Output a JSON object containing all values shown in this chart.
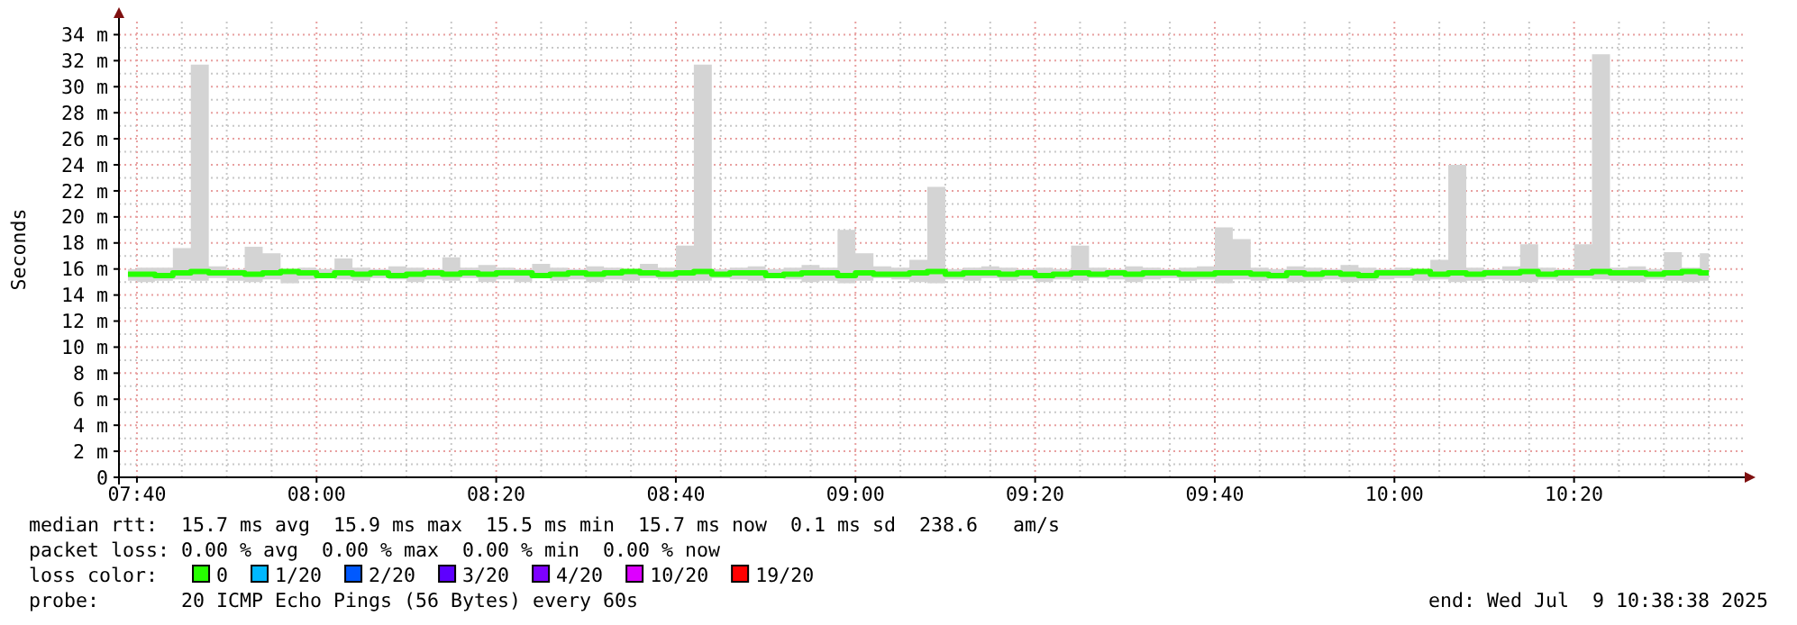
{
  "chart_data": {
    "type": "line",
    "ylabel": "Seconds",
    "legend_title": "loss color:",
    "legend": "bottom",
    "grid": true,
    "line_style": "solid",
    "marker": "none",
    "xlim": [
      "2025-07-09T07:38",
      "2025-07-09T10:39"
    ],
    "xticks": [
      {
        "value": "2025-07-09T07:40",
        "label": "07:40"
      },
      {
        "value": "2025-07-09T08:00",
        "label": "08:00"
      },
      {
        "value": "2025-07-09T08:20",
        "label": "08:20"
      },
      {
        "value": "2025-07-09T08:40",
        "label": "08:40"
      },
      {
        "value": "2025-07-09T09:00",
        "label": "09:00"
      },
      {
        "value": "2025-07-09T09:20",
        "label": "09:20"
      },
      {
        "value": "2025-07-09T09:40",
        "label": "09:40"
      },
      {
        "value": "2025-07-09T10:00",
        "label": "10:00"
      },
      {
        "value": "2025-07-09T10:20",
        "label": "10:20"
      }
    ],
    "ylim": [
      0,
      35
    ],
    "yticks": [
      0,
      {
        "value": 2,
        "label": "2 m"
      },
      {
        "value": 4,
        "label": "4 m"
      },
      {
        "value": 6,
        "label": "6 m"
      },
      {
        "value": 8,
        "label": "8 m"
      },
      {
        "value": 10,
        "label": "10 m"
      },
      {
        "value": 12,
        "label": "12 m"
      },
      {
        "value": 14,
        "label": "14 m"
      },
      {
        "value": 16,
        "label": "16 m"
      },
      {
        "value": 18,
        "label": "18 m"
      },
      {
        "value": 20,
        "label": "20 m"
      },
      {
        "value": 22,
        "label": "22 m"
      },
      {
        "value": 24,
        "label": "24 m"
      },
      {
        "value": 26,
        "label": "26 m"
      },
      {
        "value": 28,
        "label": "28 m"
      },
      {
        "value": 30,
        "label": "30 m"
      },
      {
        "value": 32,
        "label": "32 m"
      },
      {
        "value": 34,
        "label": "34 m"
      }
    ],
    "x": [
      "2025-07-09T07:39",
      "2025-07-09T07:41",
      "2025-07-09T07:43",
      "2025-07-09T07:45",
      "2025-07-09T07:47",
      "2025-07-09T07:49",
      "2025-07-09T07:51",
      "2025-07-09T07:53",
      "2025-07-09T07:55",
      "2025-07-09T07:57",
      "2025-07-09T07:59",
      "2025-07-09T08:01",
      "2025-07-09T08:03",
      "2025-07-09T08:05",
      "2025-07-09T08:07",
      "2025-07-09T08:09",
      "2025-07-09T08:11",
      "2025-07-09T08:13",
      "2025-07-09T08:15",
      "2025-07-09T08:17",
      "2025-07-09T08:19",
      "2025-07-09T08:21",
      "2025-07-09T08:23",
      "2025-07-09T08:25",
      "2025-07-09T08:27",
      "2025-07-09T08:29",
      "2025-07-09T08:31",
      "2025-07-09T08:33",
      "2025-07-09T08:35",
      "2025-07-09T08:37",
      "2025-07-09T08:39",
      "2025-07-09T08:41",
      "2025-07-09T08:43",
      "2025-07-09T08:45",
      "2025-07-09T08:47",
      "2025-07-09T08:49",
      "2025-07-09T08:51",
      "2025-07-09T08:53",
      "2025-07-09T08:55",
      "2025-07-09T08:57",
      "2025-07-09T08:59",
      "2025-07-09T09:01",
      "2025-07-09T09:03",
      "2025-07-09T09:05",
      "2025-07-09T09:07",
      "2025-07-09T09:09",
      "2025-07-09T09:11",
      "2025-07-09T09:13",
      "2025-07-09T09:15",
      "2025-07-09T09:17",
      "2025-07-09T09:19",
      "2025-07-09T09:21",
      "2025-07-09T09:23",
      "2025-07-09T09:25",
      "2025-07-09T09:27",
      "2025-07-09T09:29",
      "2025-07-09T09:31",
      "2025-07-09T09:33",
      "2025-07-09T09:35",
      "2025-07-09T09:37",
      "2025-07-09T09:39",
      "2025-07-09T09:41",
      "2025-07-09T09:43",
      "2025-07-09T09:45",
      "2025-07-09T09:47",
      "2025-07-09T09:49",
      "2025-07-09T09:51",
      "2025-07-09T09:53",
      "2025-07-09T09:55",
      "2025-07-09T09:57",
      "2025-07-09T09:59",
      "2025-07-09T10:01",
      "2025-07-09T10:03",
      "2025-07-09T10:05",
      "2025-07-09T10:07",
      "2025-07-09T10:09",
      "2025-07-09T10:11",
      "2025-07-09T10:13",
      "2025-07-09T10:15",
      "2025-07-09T10:17",
      "2025-07-09T10:19",
      "2025-07-09T10:21",
      "2025-07-09T10:23",
      "2025-07-09T10:25",
      "2025-07-09T10:27",
      "2025-07-09T10:29",
      "2025-07-09T10:31",
      "2025-07-09T10:33",
      "2025-07-09T10:35"
    ],
    "series": [
      {
        "name": "0",
        "color": "#26ff00",
        "values": [
          15.6,
          15.6,
          15.5,
          15.7,
          15.8,
          15.7,
          15.7,
          15.6,
          15.7,
          15.8,
          15.7,
          15.5,
          15.7,
          15.6,
          15.7,
          15.5,
          15.6,
          15.7,
          15.6,
          15.7,
          15.6,
          15.7,
          15.7,
          15.5,
          15.6,
          15.7,
          15.6,
          15.7,
          15.8,
          15.7,
          15.6,
          15.7,
          15.8,
          15.6,
          15.7,
          15.7,
          15.5,
          15.6,
          15.7,
          15.7,
          15.5,
          15.7,
          15.6,
          15.6,
          15.7,
          15.8,
          15.6,
          15.7,
          15.7,
          15.6,
          15.7,
          15.5,
          15.6,
          15.7,
          15.6,
          15.7,
          15.6,
          15.7,
          15.7,
          15.6,
          15.6,
          15.7,
          15.7,
          15.6,
          15.5,
          15.7,
          15.6,
          15.7,
          15.6,
          15.5,
          15.7,
          15.7,
          15.8,
          15.6,
          15.7,
          15.6,
          15.7,
          15.7,
          15.8,
          15.6,
          15.7,
          15.7,
          15.8,
          15.7,
          15.7,
          15.6,
          15.7,
          15.8,
          15.7
        ],
        "lower": [
          15.1,
          15.0,
          15.1,
          15.2,
          15.1,
          15.3,
          15.1,
          15.0,
          15.2,
          14.9,
          15.2,
          15.3,
          15.2,
          15.1,
          15.3,
          15.2,
          15.0,
          15.2,
          15.1,
          15.3,
          15.0,
          15.2,
          15.0,
          15.3,
          15.1,
          15.2,
          15.0,
          15.2,
          15.1,
          15.3,
          15.2,
          15.1,
          15.1,
          15.3,
          15.2,
          15.1,
          15.3,
          15.2,
          15.0,
          15.1,
          14.9,
          15.1,
          15.3,
          15.2,
          15.0,
          14.9,
          15.2,
          15.1,
          15.3,
          15.1,
          15.2,
          15.0,
          15.2,
          15.1,
          15.3,
          15.2,
          15.0,
          15.2,
          15.3,
          15.1,
          15.2,
          14.9,
          15.2,
          15.1,
          15.2,
          15.0,
          15.1,
          15.2,
          15.0,
          15.1,
          15.2,
          15.3,
          15.1,
          15.2,
          15.0,
          15.1,
          15.2,
          15.1,
          15.0,
          15.2,
          15.1,
          15.3,
          15.2,
          15.1,
          15.0,
          15.2,
          15.1,
          15.0,
          15.1
        ],
        "upper": [
          16.0,
          16.1,
          16.1,
          17.6,
          31.7,
          16.2,
          16.0,
          17.7,
          17.2,
          16.0,
          16.1,
          16.0,
          16.8,
          16.1,
          16.0,
          16.2,
          16.1,
          16.0,
          16.9,
          16.1,
          16.3,
          16.1,
          16.0,
          16.4,
          16.1,
          16.0,
          16.2,
          16.1,
          16.0,
          16.4,
          16.1,
          17.8,
          31.7,
          16.0,
          16.1,
          16.2,
          16.0,
          16.1,
          16.3,
          16.1,
          19.0,
          17.2,
          16.2,
          16.1,
          16.7,
          22.3,
          16.0,
          16.1,
          16.2,
          16.1,
          16.0,
          16.1,
          16.0,
          17.8,
          16.1,
          16.0,
          16.2,
          16.1,
          16.0,
          16.1,
          16.2,
          19.2,
          18.3,
          16.1,
          16.0,
          16.2,
          16.1,
          16.0,
          16.3,
          16.1,
          16.0,
          16.1,
          16.0,
          16.7,
          24.0,
          16.1,
          16.0,
          16.2,
          17.9,
          16.1,
          16.0,
          17.9,
          32.5,
          16.1,
          16.2,
          16.0,
          17.3,
          16.1,
          17.2
        ]
      },
      {
        "name": "1/20",
        "color": "#00b8ff",
        "values": [
          null,
          null,
          null,
          null,
          null,
          null,
          null,
          null,
          null,
          null,
          null,
          null,
          null,
          null,
          null,
          null,
          null,
          null,
          null,
          null,
          null,
          null,
          null,
          null,
          null,
          null,
          null,
          null,
          null,
          null,
          null,
          null,
          null,
          null,
          null,
          null,
          null,
          null,
          null,
          null,
          null,
          null,
          null,
          null,
          null,
          null,
          null,
          null,
          null,
          null,
          null,
          null,
          null,
          null,
          null,
          null,
          null,
          null,
          null,
          null,
          null,
          null,
          null,
          null,
          null,
          null,
          null,
          null,
          null,
          null,
          null,
          null,
          null,
          null,
          null,
          null,
          null,
          null,
          null,
          null,
          null,
          null,
          null,
          null,
          null,
          null,
          null,
          null,
          null
        ]
      },
      {
        "name": "2/20",
        "color": "#0059ff",
        "values": [
          null,
          null,
          null,
          null,
          null,
          null,
          null,
          null,
          null,
          null,
          null,
          null,
          null,
          null,
          null,
          null,
          null,
          null,
          null,
          null,
          null,
          null,
          null,
          null,
          null,
          null,
          null,
          null,
          null,
          null,
          null,
          null,
          null,
          null,
          null,
          null,
          null,
          null,
          null,
          null,
          null,
          null,
          null,
          null,
          null,
          null,
          null,
          null,
          null,
          null,
          null,
          null,
          null,
          null,
          null,
          null,
          null,
          null,
          null,
          null,
          null,
          null,
          null,
          null,
          null,
          null,
          null,
          null,
          null,
          null,
          null,
          null,
          null,
          null,
          null,
          null,
          null,
          null,
          null,
          null,
          null,
          null,
          null,
          null,
          null,
          null,
          null,
          null,
          null
        ]
      },
      {
        "name": "3/20",
        "color": "#5e00ff",
        "values": [
          null,
          null,
          null,
          null,
          null,
          null,
          null,
          null,
          null,
          null,
          null,
          null,
          null,
          null,
          null,
          null,
          null,
          null,
          null,
          null,
          null,
          null,
          null,
          null,
          null,
          null,
          null,
          null,
          null,
          null,
          null,
          null,
          null,
          null,
          null,
          null,
          null,
          null,
          null,
          null,
          null,
          null,
          null,
          null,
          null,
          null,
          null,
          null,
          null,
          null,
          null,
          null,
          null,
          null,
          null,
          null,
          null,
          null,
          null,
          null,
          null,
          null,
          null,
          null,
          null,
          null,
          null,
          null,
          null,
          null,
          null,
          null,
          null,
          null,
          null,
          null,
          null,
          null,
          null,
          null,
          null,
          null,
          null,
          null,
          null,
          null,
          null,
          null,
          null
        ]
      },
      {
        "name": "4/20",
        "color": "#7e00ff",
        "values": [
          null,
          null,
          null,
          null,
          null,
          null,
          null,
          null,
          null,
          null,
          null,
          null,
          null,
          null,
          null,
          null,
          null,
          null,
          null,
          null,
          null,
          null,
          null,
          null,
          null,
          null,
          null,
          null,
          null,
          null,
          null,
          null,
          null,
          null,
          null,
          null,
          null,
          null,
          null,
          null,
          null,
          null,
          null,
          null,
          null,
          null,
          null,
          null,
          null,
          null,
          null,
          null,
          null,
          null,
          null,
          null,
          null,
          null,
          null,
          null,
          null,
          null,
          null,
          null,
          null,
          null,
          null,
          null,
          null,
          null,
          null,
          null,
          null,
          null,
          null,
          null,
          null,
          null,
          null,
          null,
          null,
          null,
          null,
          null,
          null,
          null,
          null,
          null,
          null
        ]
      },
      {
        "name": "10/20",
        "color": "#dd00ff",
        "values": [
          null,
          null,
          null,
          null,
          null,
          null,
          null,
          null,
          null,
          null,
          null,
          null,
          null,
          null,
          null,
          null,
          null,
          null,
          null,
          null,
          null,
          null,
          null,
          null,
          null,
          null,
          null,
          null,
          null,
          null,
          null,
          null,
          null,
          null,
          null,
          null,
          null,
          null,
          null,
          null,
          null,
          null,
          null,
          null,
          null,
          null,
          null,
          null,
          null,
          null,
          null,
          null,
          null,
          null,
          null,
          null,
          null,
          null,
          null,
          null,
          null,
          null,
          null,
          null,
          null,
          null,
          null,
          null,
          null,
          null,
          null,
          null,
          null,
          null,
          null,
          null,
          null,
          null,
          null,
          null,
          null,
          null,
          null,
          null,
          null,
          null,
          null,
          null,
          null
        ]
      },
      {
        "name": "19/20",
        "color": "#ff0000",
        "values": [
          null,
          null,
          null,
          null,
          null,
          null,
          null,
          null,
          null,
          null,
          null,
          null,
          null,
          null,
          null,
          null,
          null,
          null,
          null,
          null,
          null,
          null,
          null,
          null,
          null,
          null,
          null,
          null,
          null,
          null,
          null,
          null,
          null,
          null,
          null,
          null,
          null,
          null,
          null,
          null,
          null,
          null,
          null,
          null,
          null,
          null,
          null,
          null,
          null,
          null,
          null,
          null,
          null,
          null,
          null,
          null,
          null,
          null,
          null,
          null,
          null,
          null,
          null,
          null,
          null,
          null,
          null,
          null,
          null,
          null,
          null,
          null,
          null,
          null,
          null,
          null,
          null,
          null,
          null,
          null,
          null,
          null,
          null,
          null,
          null,
          null,
          null,
          null,
          null
        ]
      }
    ],
    "annotations": [
      "median rtt:  15.7 ms avg  15.9 ms max  15.5 ms min  15.7 ms now  0.1 ms sd  238.6   am/s",
      "packet loss: 0.00 % avg  0.00 % max  0.00 % min  0.00 % now",
      "probe:       20 ICMP Echo Pings (56 Bytes) every 60s",
      "end: Wed Jul  9 10:38:38 2025"
    ]
  }
}
